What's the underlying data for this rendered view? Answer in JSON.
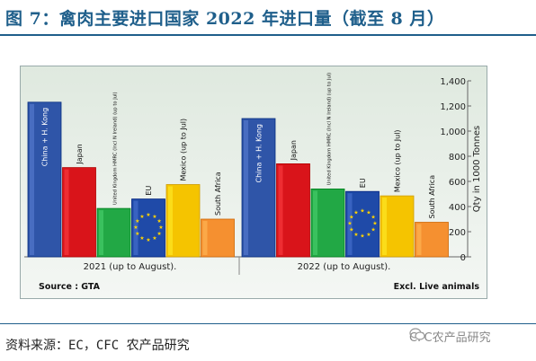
{
  "figure": {
    "title": "图 7：禽肉主要进口国家 2022 年进口量（截至 8 月）",
    "source_note": "资料来源：EC，CFC 农产品研究",
    "watermark": "CFC农产品研究",
    "watermark_icon": "wechat-icon"
  },
  "chart_data": {
    "type": "bar",
    "ylabel": "Qty in 1000 Tonnes",
    "ylim": [
      0,
      1400
    ],
    "yticks": [
      "0",
      "200",
      "400",
      "600",
      "800",
      "1,000",
      "1,200",
      "1,400"
    ],
    "ytick_values": [
      0,
      200,
      400,
      600,
      800,
      1000,
      1200,
      1400
    ],
    "categories": [
      "China + H. Kong",
      "Japan",
      "United Kingdom HMRC (Incl N Ireland) (up to Jul)",
      "EU",
      "Mexico (up to Jul)",
      "South Africa"
    ],
    "group_labels": [
      "2021 (up to August).",
      "2022 (up to August)."
    ],
    "groups": [
      {
        "name": "2021 (up to August).",
        "values": [
          1230,
          710,
          385,
          460,
          575,
          300
        ]
      },
      {
        "name": "2022 (up to August).",
        "values": [
          1100,
          740,
          540,
          520,
          485,
          275
        ]
      }
    ],
    "bar_colors": [
      "#2f55a8",
      "#d9141a",
      "#22a845",
      "#1f4aa8",
      "#f5c400",
      "#f59030"
    ],
    "eu_flag_star_color": "#ffd400",
    "footer_left": "Source : GTA",
    "footer_right": "Excl. Live animals",
    "grid": false
  }
}
